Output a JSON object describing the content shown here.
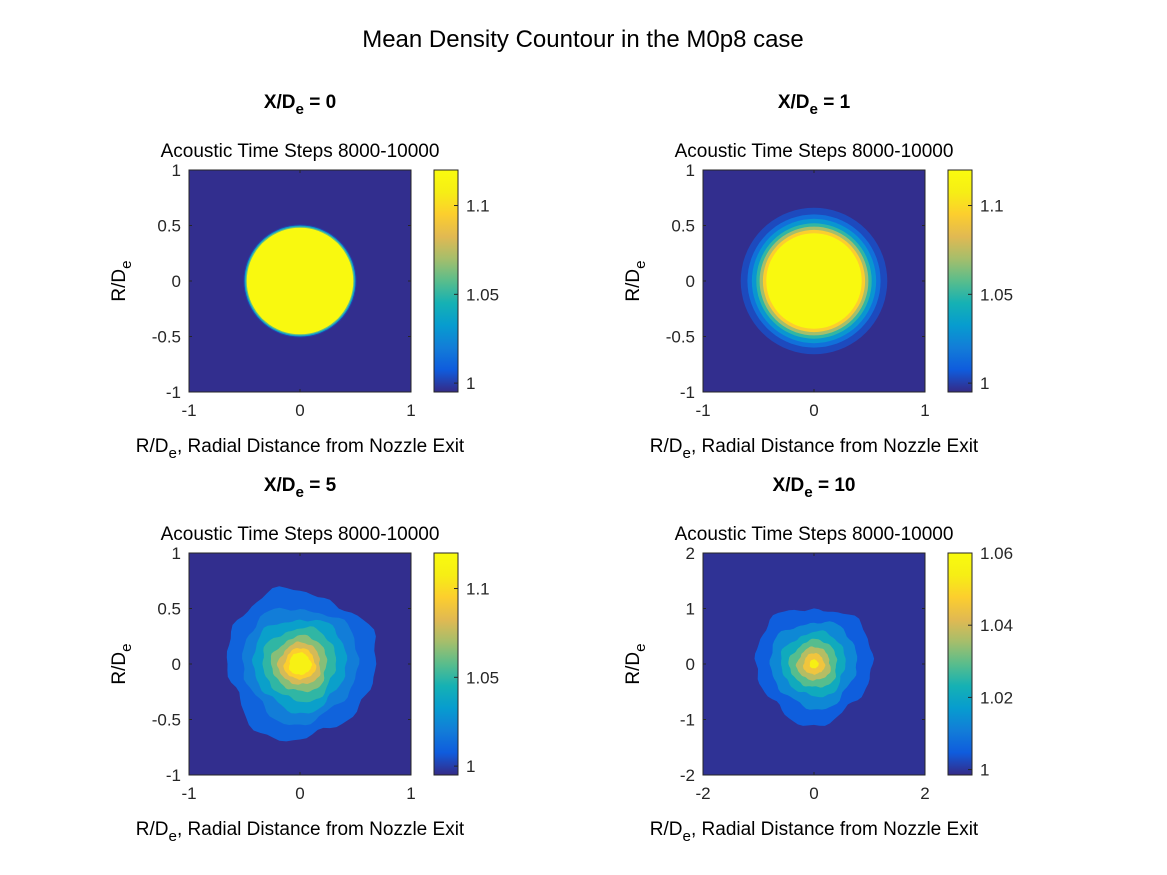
{
  "figure": {
    "suptitle": "Mean Density Countour in the M0p8 case"
  },
  "chart_data": [
    {
      "type": "heatmap",
      "title_main": "X/D",
      "title_sub": "e",
      "title_tail": " = 0",
      "subtitle": "Acoustic Time Steps 8000-10000",
      "xlabel_main": "R/D",
      "xlabel_sub": "e",
      "xlabel_tail": ", Radial Distance from Nozzle Exit",
      "ylabel_main": "R/D",
      "ylabel_sub": "e",
      "xlim": [
        -1,
        1
      ],
      "ylim": [
        -1,
        1
      ],
      "xticks": [
        "-1",
        "0",
        "1"
      ],
      "yticks": [
        "1",
        "0.5",
        "0",
        "-0.5",
        "-1"
      ],
      "clim": [
        0.995,
        1.12
      ],
      "cbar_ticks": [
        "1.1",
        "1.05",
        "1"
      ],
      "cbar_tick_values": [
        1.1,
        1.05,
        1.0
      ],
      "contours": [
        {
          "level": 1.0,
          "radius": 0.51
        },
        {
          "level": 1.035,
          "radius": 0.5
        },
        {
          "level": 1.06,
          "radius": 0.49
        },
        {
          "level": 1.118,
          "radius": 0.48
        }
      ]
    },
    {
      "type": "heatmap",
      "title_main": "X/D",
      "title_sub": "e",
      "title_tail": " = 1",
      "subtitle": "Acoustic Time Steps 8000-10000",
      "xlabel_main": "R/D",
      "xlabel_sub": "e",
      "xlabel_tail": ", Radial Distance from Nozzle Exit",
      "ylabel_main": "R/D",
      "ylabel_sub": "e",
      "xlim": [
        -1,
        1
      ],
      "ylim": [
        -1,
        1
      ],
      "xticks": [
        "-1",
        "0",
        "1"
      ],
      "yticks": [
        "1",
        "0.5",
        "0",
        "-0.5",
        "-1"
      ],
      "clim": [
        0.995,
        1.12
      ],
      "cbar_ticks": [
        "1.1",
        "1.05",
        "1"
      ],
      "cbar_tick_values": [
        1.1,
        1.05,
        1.0
      ],
      "contours": [
        {
          "level": 1.003,
          "radius": 0.66
        },
        {
          "level": 1.015,
          "radius": 0.6
        },
        {
          "level": 1.03,
          "radius": 0.56
        },
        {
          "level": 1.05,
          "radius": 0.52
        },
        {
          "level": 1.07,
          "radius": 0.49
        },
        {
          "level": 1.095,
          "radius": 0.46
        },
        {
          "level": 1.118,
          "radius": 0.43
        }
      ]
    },
    {
      "type": "heatmap",
      "title_main": "X/D",
      "title_sub": "e",
      "title_tail": " = 5",
      "subtitle": "Acoustic Time Steps 8000-10000",
      "xlabel_main": "R/D",
      "xlabel_sub": "e",
      "xlabel_tail": ", Radial Distance from Nozzle Exit",
      "ylabel_main": "R/D",
      "ylabel_sub": "e",
      "xlim": [
        -1,
        1
      ],
      "ylim": [
        -1,
        1
      ],
      "xticks": [
        "-1",
        "0",
        "1"
      ],
      "yticks": [
        "1",
        "0.5",
        "0",
        "-0.5",
        "-1"
      ],
      "clim": [
        0.995,
        1.12
      ],
      "cbar_ticks": [
        "1.1",
        "1.05",
        "1"
      ],
      "cbar_tick_values": [
        1.1,
        1.05,
        1.0
      ],
      "contours": [
        {
          "level": 1.01,
          "radius": 0.67
        },
        {
          "level": 1.02,
          "radius": 0.52
        },
        {
          "level": 1.035,
          "radius": 0.42
        },
        {
          "level": 1.05,
          "radius": 0.33
        },
        {
          "level": 1.065,
          "radius": 0.25
        },
        {
          "level": 1.08,
          "radius": 0.19
        },
        {
          "level": 1.095,
          "radius": 0.14
        },
        {
          "level": 1.11,
          "radius": 0.1
        }
      ]
    },
    {
      "type": "heatmap",
      "title_main": "X/D",
      "title_sub": "e",
      "title_tail": " = 10",
      "subtitle": "Acoustic Time Steps 8000-10000",
      "xlabel_main": "R/D",
      "xlabel_sub": "e",
      "xlabel_tail": ", Radial Distance from Nozzle Exit",
      "ylabel_main": "R/D",
      "ylabel_sub": "e",
      "xlim": [
        -2,
        2
      ],
      "ylim": [
        -2,
        2
      ],
      "xticks": [
        "-2",
        "0",
        "2"
      ],
      "yticks": [
        "2",
        "1",
        "0",
        "-1",
        "-2"
      ],
      "clim": [
        0.9985,
        1.06
      ],
      "cbar_ticks": [
        "1.06",
        "1.04",
        "1.02",
        "1"
      ],
      "cbar_tick_values": [
        1.06,
        1.04,
        1.02,
        1.0
      ],
      "contours": [
        {
          "level": 1.005,
          "radius": 1.05
        },
        {
          "level": 1.013,
          "radius": 0.78
        },
        {
          "level": 1.021,
          "radius": 0.58
        },
        {
          "level": 1.029,
          "radius": 0.43
        },
        {
          "level": 1.037,
          "radius": 0.3
        },
        {
          "level": 1.045,
          "radius": 0.19
        },
        {
          "level": 1.055,
          "radius": 0.08
        }
      ]
    }
  ]
}
